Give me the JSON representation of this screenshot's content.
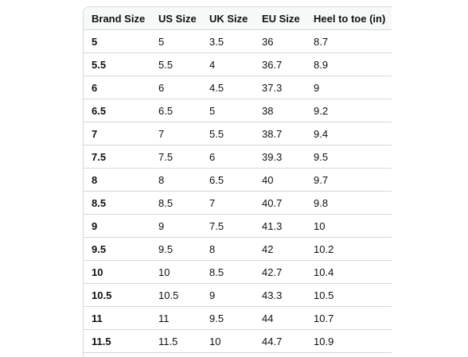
{
  "table": {
    "headers": [
      "Brand Size",
      "US Size",
      "UK Size",
      "EU Size",
      "Heel to toe (in)"
    ],
    "rows": [
      [
        "5",
        "5",
        "3.5",
        "36",
        "8.7"
      ],
      [
        "5.5",
        "5.5",
        "4",
        "36.7",
        "8.9"
      ],
      [
        "6",
        "6",
        "4.5",
        "37.3",
        "9"
      ],
      [
        "6.5",
        "6.5",
        "5",
        "38",
        "9.2"
      ],
      [
        "7",
        "7",
        "5.5",
        "38.7",
        "9.4"
      ],
      [
        "7.5",
        "7.5",
        "6",
        "39.3",
        "9.5"
      ],
      [
        "8",
        "8",
        "6.5",
        "40",
        "9.7"
      ],
      [
        "8.5",
        "8.5",
        "7",
        "40.7",
        "9.8"
      ],
      [
        "9",
        "9",
        "7.5",
        "41.3",
        "10"
      ],
      [
        "9.5",
        "9.5",
        "8",
        "42",
        "10.2"
      ],
      [
        "10",
        "10",
        "8.5",
        "42.7",
        "10.4"
      ],
      [
        "10.5",
        "10.5",
        "9",
        "43.3",
        "10.5"
      ],
      [
        "11",
        "11",
        "9.5",
        "44",
        "10.7"
      ],
      [
        "11.5",
        "11.5",
        "10",
        "44.7",
        "10.9"
      ]
    ]
  }
}
